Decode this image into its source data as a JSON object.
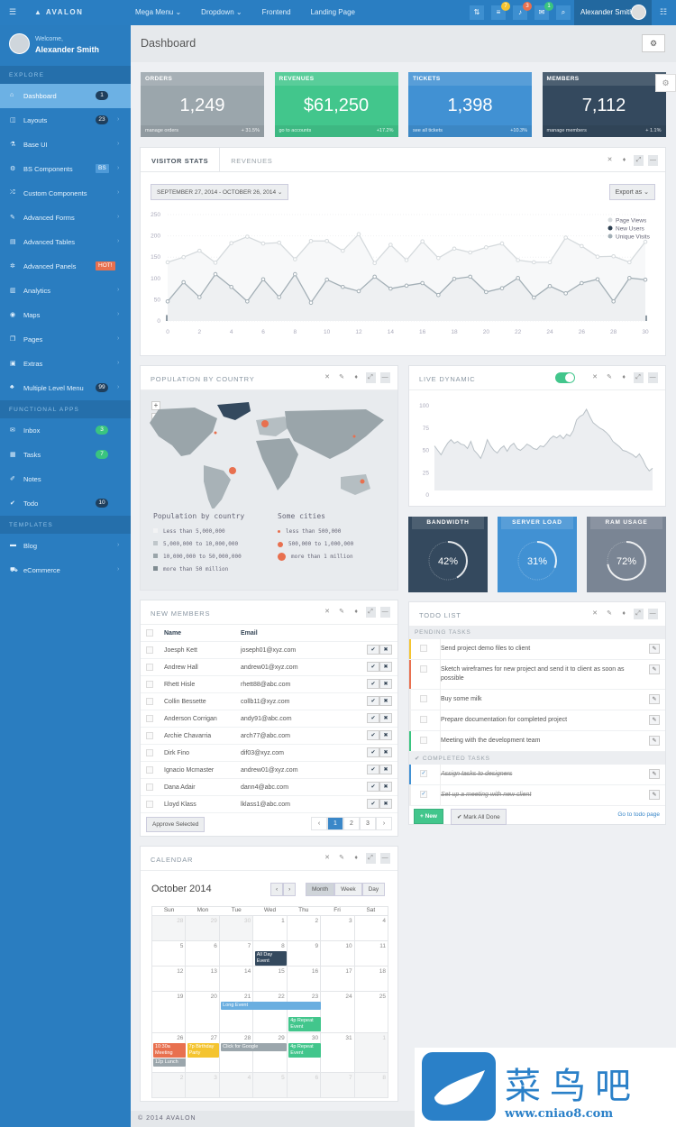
{
  "topbar": {
    "brand": "AVALON",
    "menu": [
      {
        "label": "Mega Menu ⌄",
        "icon": "random-icon"
      },
      {
        "label": "Dropdown ⌄"
      },
      {
        "label": "Frontend"
      },
      {
        "label": "Landing Page"
      }
    ],
    "buttons": [
      {
        "icon": "sort-icon",
        "glyph": "⇅"
      },
      {
        "icon": "tasks-icon",
        "glyph": "≡",
        "badge": "7",
        "badge_color": "#f4c430"
      },
      {
        "icon": "bell-icon",
        "glyph": "♪",
        "badge": "3",
        "badge_color": "#e8704f"
      },
      {
        "icon": "envelope-icon",
        "glyph": "✉",
        "badge": "1",
        "badge_color": "#3ac480"
      },
      {
        "icon": "search-icon",
        "glyph": "⌕"
      }
    ],
    "user": "Alexander Smith"
  },
  "sidebar": {
    "welcome": "Welcome,",
    "name": "Alexander Smith",
    "sections": [
      {
        "title": "EXPLORE",
        "items": [
          {
            "label": "Dashboard",
            "icon": "home-icon",
            "glyph": "⌂",
            "badge": "1",
            "active": true
          },
          {
            "label": "Layouts",
            "icon": "columns-icon",
            "glyph": "◫",
            "badge": "23",
            "chevron": true
          },
          {
            "label": "Base UI",
            "icon": "flask-icon",
            "glyph": "⚗",
            "chevron": true
          },
          {
            "label": "BS Components",
            "icon": "cogs-icon",
            "glyph": "⚙",
            "badge": "BS",
            "badge_style": "sq",
            "chevron": true
          },
          {
            "label": "Custom Components",
            "icon": "random-icon",
            "glyph": "⤮",
            "chevron": true
          },
          {
            "label": "Advanced Forms",
            "icon": "pencil-icon",
            "glyph": "✎",
            "chevron": true
          },
          {
            "label": "Advanced Tables",
            "icon": "table-icon",
            "glyph": "▤",
            "chevron": true
          },
          {
            "label": "Advanced Panels",
            "icon": "gear-icon",
            "glyph": "✲",
            "badge": "HOT!",
            "badge_style": "hot"
          },
          {
            "label": "Analytics",
            "icon": "bar-chart-icon",
            "glyph": "▥",
            "chevron": true
          },
          {
            "label": "Maps",
            "icon": "map-marker-icon",
            "glyph": "◉",
            "chevron": true
          },
          {
            "label": "Pages",
            "icon": "copy-icon",
            "glyph": "❐",
            "chevron": true
          },
          {
            "label": "Extras",
            "icon": "briefcase-icon",
            "glyph": "▣",
            "chevron": true
          },
          {
            "label": "Multiple Level Menu",
            "icon": "sitemap-icon",
            "glyph": "♣",
            "badge": "99",
            "chevron": true
          }
        ]
      },
      {
        "title": "FUNCTIONAL APPS",
        "items": [
          {
            "label": "Inbox",
            "icon": "inbox-icon",
            "glyph": "✉",
            "badge": "3",
            "badge_style": "green"
          },
          {
            "label": "Tasks",
            "icon": "tasks-icon",
            "glyph": "▦",
            "badge": "7",
            "badge_style": "green"
          },
          {
            "label": "Notes",
            "icon": "edit-icon",
            "glyph": "✐"
          },
          {
            "label": "Todo",
            "icon": "check-icon",
            "glyph": "✔",
            "badge": "10"
          }
        ]
      },
      {
        "title": "TEMPLATES",
        "items": [
          {
            "label": "Blog",
            "icon": "blog-icon",
            "glyph": "▬",
            "chevron": true
          },
          {
            "label": "eCommerce",
            "icon": "cart-icon",
            "glyph": "⛟",
            "chevron": true
          }
        ]
      }
    ]
  },
  "header": {
    "title": "Dashboard"
  },
  "stats": [
    {
      "title": "ORDERS",
      "value": "1,249",
      "link": "manage orders",
      "change": "+ 31.5%",
      "color": "#9ba6ac"
    },
    {
      "title": "REVENUES",
      "value": "$61,250",
      "link": "go to accounts",
      "change": "+17.2%",
      "color": "#42c68c"
    },
    {
      "title": "TICKETS",
      "value": "1,398",
      "link": "see all tickets",
      "change": "+10.3%",
      "color": "#4191d3"
    },
    {
      "title": "MEMBERS",
      "value": "7,112",
      "link": "manage members",
      "change": "+ 1.1%",
      "color": "#34495e"
    }
  ],
  "visitor": {
    "tabs": [
      "VISITOR STATS",
      "REVENUES"
    ],
    "date_range": "SEPTEMBER 27, 2014 - OCTOBER 26, 2014 ⌄",
    "export": "Export as ⌄"
  },
  "chart_data": [
    {
      "type": "line",
      "ylim": [
        0,
        250
      ],
      "yticks": [
        0,
        50,
        100,
        150,
        200,
        250
      ],
      "xticks": [
        0,
        2,
        4,
        6,
        8,
        10,
        12,
        14,
        16,
        18,
        20,
        22,
        24,
        26,
        28,
        30
      ],
      "legend": "top-right",
      "grid": true,
      "x": [
        0,
        1,
        2,
        3,
        4,
        5,
        6,
        7,
        8,
        9,
        10,
        11,
        12,
        13,
        14,
        15,
        16,
        17,
        18,
        19,
        20,
        21,
        22,
        23,
        24,
        25,
        26,
        27,
        28,
        29,
        30
      ],
      "series": [
        {
          "name": "Page Views",
          "kind": "area-line",
          "color": "#d5dadd",
          "values": [
            138,
            150,
            165,
            137,
            183,
            198,
            182,
            184,
            145,
            188,
            188,
            165,
            204,
            136,
            179,
            143,
            187,
            148,
            170,
            161,
            173,
            182,
            143,
            138,
            138,
            196,
            176,
            151,
            152,
            138,
            186
          ]
        },
        {
          "name": "New Users",
          "kind": "bar",
          "color": "#8e9aa3",
          "values": [
            14,
            15,
            12,
            13,
            14,
            22,
            12,
            23,
            20,
            16,
            23,
            20,
            17,
            12,
            11,
            20,
            16,
            19,
            24,
            21,
            11,
            18,
            12,
            11,
            15,
            15,
            6,
            21,
            8,
            13,
            13
          ]
        },
        {
          "name": "Unique Visits",
          "kind": "area-line",
          "color": "#a3afb6",
          "values": [
            46,
            91,
            56,
            110,
            80,
            46,
            98,
            56,
            110,
            43,
            97,
            80,
            70,
            104,
            76,
            83,
            89,
            61,
            99,
            104,
            68,
            77,
            101,
            55,
            82,
            65,
            89,
            98,
            46,
            101,
            97
          ]
        }
      ]
    },
    {
      "type": "area",
      "ylim": [
        0,
        100
      ],
      "yticks": [
        0,
        25,
        50,
        75,
        100
      ],
      "values": [
        55,
        50,
        45,
        52,
        58,
        62,
        58,
        60,
        57,
        56,
        52,
        60,
        50,
        46,
        41,
        50,
        62,
        55,
        50,
        47,
        52,
        55,
        49,
        55,
        58,
        52,
        50,
        53,
        57,
        55,
        52,
        51,
        55,
        54,
        58,
        63,
        66,
        64,
        67,
        63,
        68,
        66,
        72,
        84,
        88,
        90,
        96,
        88,
        81,
        78,
        75,
        73,
        70,
        66,
        60,
        57,
        54,
        50,
        49,
        47,
        45,
        42,
        46,
        40,
        32,
        27,
        30
      ]
    }
  ],
  "population": {
    "title": "POPULATION BY COUNTRY",
    "legend1_title": "Population by country",
    "legend1": [
      "Less than 5,000,000",
      "5,000,000 to 10,000,000",
      "10,000,000 to 50,000,000",
      "more than 50 million"
    ],
    "legend2_title": "Some cities",
    "legend2": [
      "less than 500,000",
      "500,000 to 1,000,000",
      "more than 1 million"
    ],
    "zoom_in": "+",
    "zoom_out": "−",
    "city_color": "#e8704f"
  },
  "live": {
    "title": "LIVE DYNAMIC",
    "toggle_on": true
  },
  "gauges": [
    {
      "title": "BANDWIDTH",
      "percent": 42,
      "color": "#34495e"
    },
    {
      "title": "SERVER LOAD",
      "percent": 31,
      "color": "#4191d3"
    },
    {
      "title": "RAM USAGE",
      "percent": 72,
      "color": "#7a8594"
    }
  ],
  "members": {
    "title": "NEW MEMBERS",
    "cols": [
      "Name",
      "Email"
    ],
    "rows": [
      [
        "Joesph Kett",
        "joseph01@xyz.com"
      ],
      [
        "Andrew Hall",
        "andrew01@xyz.com"
      ],
      [
        "Rhett Hisle",
        "rhett88@abc.com"
      ],
      [
        "Collin Bessette",
        "collb11@xyz.com"
      ],
      [
        "Anderson Corrigan",
        "andy91@abc.com"
      ],
      [
        "Archie Chavarria",
        "arch77@abc.com"
      ],
      [
        "Dirk Fino",
        "dif03@xyz.com"
      ],
      [
        "Ignacio Mcmaster",
        "andrew01@xyz.com"
      ],
      [
        "Dana Adair",
        "dann4@abc.com"
      ],
      [
        "Lloyd Klass",
        "lklass1@abc.com"
      ]
    ],
    "approve": "Approve Selected",
    "pages": [
      "‹",
      "1",
      "2",
      "3",
      "›"
    ],
    "current_page": "1"
  },
  "todo": {
    "title": "TODO LIST",
    "pending_label": "PENDING TASKS",
    "completed_label": "✔ COMPLETED TASKS",
    "pending": [
      {
        "text": "Send project demo files to client",
        "color": "#f4c430"
      },
      {
        "text": "Sketch wireframes for new project and send it to client as soon as possible",
        "color": "#e8704f"
      },
      {
        "text": "Buy some milk",
        "color": ""
      },
      {
        "text": "Prepare documentation for completed project",
        "color": ""
      },
      {
        "text": "Meeting with the development team",
        "color": "#3ac480"
      }
    ],
    "completed": [
      {
        "text": "Assign tasks to designers",
        "color": "#4191d3"
      },
      {
        "text": "Set up a meeting with new client",
        "color": ""
      }
    ],
    "new_btn": "+ New",
    "mark_all": "✔ Mark All Done",
    "goto": "Go to todo page"
  },
  "calendar": {
    "title": "CALENDAR",
    "month": "October 2014",
    "prev": "‹",
    "next": "›",
    "views": [
      "Month",
      "Week",
      "Day"
    ],
    "active_view": "Month",
    "days": [
      "Sun",
      "Mon",
      "Tue",
      "Wed",
      "Thu",
      "Fri",
      "Sat"
    ],
    "weeks": [
      [
        "28",
        "29",
        "30",
        "1",
        "2",
        "3",
        "4"
      ],
      [
        "5",
        "6",
        "7",
        "8",
        "9",
        "10",
        "11"
      ],
      [
        "12",
        "13",
        "14",
        "15",
        "16",
        "17",
        "18"
      ],
      [
        "19",
        "20",
        "21",
        "22",
        "23",
        "24",
        "25"
      ],
      [
        "26",
        "27",
        "28",
        "29",
        "30",
        "31",
        "1"
      ],
      [
        "2",
        "3",
        "4",
        "5",
        "6",
        "7",
        "8"
      ]
    ],
    "events": [
      {
        "title": "All Day Event",
        "week": 1,
        "day": 3,
        "span": 1,
        "color": "#34495e",
        "slot": 0
      },
      {
        "title": "Long Event",
        "week": 3,
        "day": 2,
        "span": 3,
        "color": "#6aaee0",
        "slot": 0
      },
      {
        "title": "4p Repeat Event",
        "week": 3,
        "day": 4,
        "span": 1,
        "color": "#42c68c",
        "slot": 1
      },
      {
        "title": "10:30a Meeting",
        "week": 4,
        "day": 0,
        "span": 1,
        "color": "#e8704f",
        "slot": 0
      },
      {
        "title": "12p Lunch",
        "week": 4,
        "day": 0,
        "span": 1,
        "color": "#9ba6ac",
        "slot": 1
      },
      {
        "title": "7p Birthday Party",
        "week": 4,
        "day": 1,
        "span": 1,
        "color": "#f4c430",
        "slot": 0
      },
      {
        "title": "Click for Google",
        "week": 4,
        "day": 2,
        "span": 2,
        "color": "#9ba6ac",
        "slot": 0
      },
      {
        "title": "4p Repeat Event",
        "week": 4,
        "day": 4,
        "span": 1,
        "color": "#42c68c",
        "slot": 0
      }
    ]
  },
  "footer": "© 2014 AVALON",
  "watermark": {
    "name": "菜鸟吧",
    "url": "www.cniao8.com"
  }
}
